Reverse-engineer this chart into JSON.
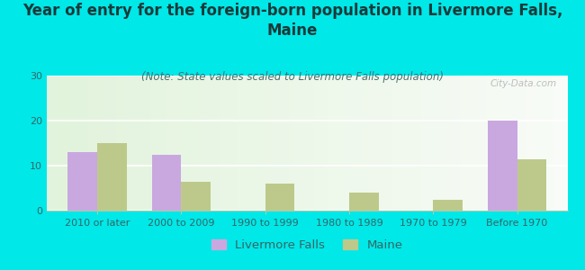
{
  "title": "Year of entry for the foreign-born population in Livermore Falls,\nMaine",
  "subtitle": "(Note: State values scaled to Livermore Falls population)",
  "categories": [
    "2010 or later",
    "2000 to 2009",
    "1990 to 1999",
    "1980 to 1989",
    "1970 to 1979",
    "Before 1970"
  ],
  "livermore_values": [
    13,
    12.5,
    0,
    0,
    0,
    20
  ],
  "maine_values": [
    15,
    6.5,
    6,
    4,
    2.5,
    11.5
  ],
  "livermore_color": "#c9a8e0",
  "maine_color": "#bdc98a",
  "background_color": "#00e8e8",
  "ylim": [
    0,
    30
  ],
  "yticks": [
    0,
    10,
    20,
    30
  ],
  "bar_width": 0.35,
  "title_fontsize": 12,
  "subtitle_fontsize": 8.5,
  "tick_fontsize": 8,
  "legend_fontsize": 9.5,
  "watermark": "City-Data.com",
  "title_color": "#1a3a3a",
  "subtitle_color": "#4a7070",
  "tick_color": "#336666",
  "legend_label_livermore": "Livermore Falls",
  "legend_label_maine": "Maine"
}
